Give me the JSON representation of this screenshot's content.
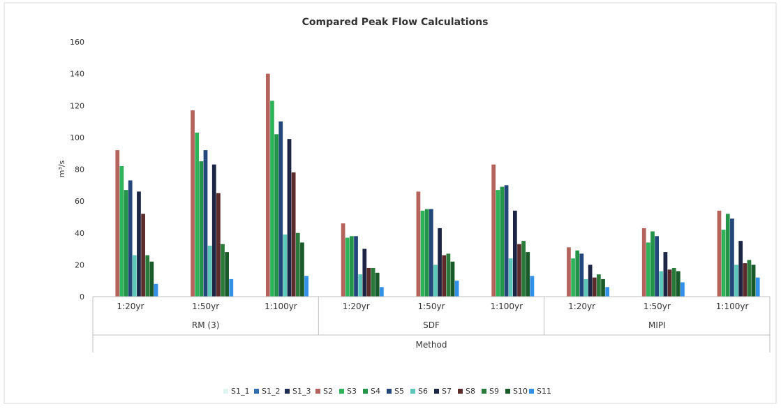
{
  "chart_data": {
    "type": "bar",
    "title": "Compared Peak Flow Calculations",
    "ylabel": "m³/s",
    "xlabel": "Method",
    "ylim": [
      0,
      160
    ],
    "yticks": [
      0,
      20,
      40,
      60,
      80,
      100,
      120,
      140,
      160
    ],
    "grid": false,
    "legend_position": "bottom",
    "groups": [
      {
        "label": "RM (3)",
        "categories": [
          "1:20yr",
          "1:50yr",
          "1:100yr"
        ]
      },
      {
        "label": "SDF",
        "categories": [
          "1:20yr",
          "1:50yr",
          "1:100yr"
        ]
      },
      {
        "label": "MIPI",
        "categories": [
          "1:20yr",
          "1:50yr",
          "1:100yr"
        ]
      }
    ],
    "series": [
      {
        "name": "S1_1",
        "color": "#dff5ef",
        "values": [
          0,
          0,
          0,
          0,
          0,
          0,
          0,
          0,
          0
        ]
      },
      {
        "name": "S1_2",
        "color": "#2f6fb0",
        "values": [
          0,
          0,
          0,
          0,
          0,
          0,
          0,
          0,
          0
        ]
      },
      {
        "name": "S1_3",
        "color": "#1f2d57",
        "values": [
          0,
          0,
          0,
          0,
          0,
          0,
          0,
          0,
          0
        ]
      },
      {
        "name": "S2",
        "color": "#b5645d",
        "values": [
          92,
          117,
          140,
          46,
          66,
          83,
          31,
          43,
          54
        ]
      },
      {
        "name": "S3",
        "color": "#2fb35a",
        "values": [
          82,
          103,
          123,
          37,
          54,
          67,
          24,
          34,
          42
        ]
      },
      {
        "name": "S4",
        "color": "#23944a",
        "values": [
          67,
          85,
          102,
          38,
          55,
          69,
          29,
          41,
          52
        ]
      },
      {
        "name": "S5",
        "color": "#23477a",
        "values": [
          73,
          92,
          110,
          38,
          55,
          70,
          27,
          38,
          49
        ]
      },
      {
        "name": "S6",
        "color": "#5cc7b9",
        "values": [
          26,
          32,
          39,
          14,
          20,
          24,
          11,
          16,
          20
        ]
      },
      {
        "name": "S7",
        "color": "#1c2644",
        "values": [
          66,
          83,
          99,
          30,
          43,
          54,
          20,
          28,
          35
        ]
      },
      {
        "name": "S8",
        "color": "#5c2b2b",
        "values": [
          52,
          65,
          78,
          18,
          26,
          33,
          12,
          17,
          21
        ]
      },
      {
        "name": "S9",
        "color": "#2a7a3b",
        "values": [
          26,
          33,
          40,
          18,
          27,
          35,
          14,
          18,
          23
        ]
      },
      {
        "name": "S10",
        "color": "#1a5a2a",
        "values": [
          22,
          28,
          34,
          15,
          22,
          28,
          11,
          16,
          20
        ]
      },
      {
        "name": "S11",
        "color": "#3391e8",
        "values": [
          8,
          11,
          13,
          6,
          10,
          13,
          6,
          9,
          12
        ]
      }
    ]
  }
}
